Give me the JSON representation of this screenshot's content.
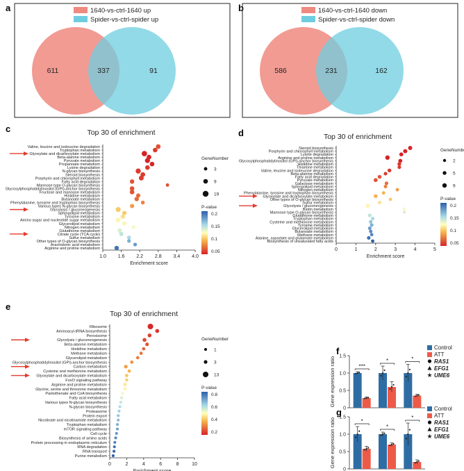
{
  "figure_labels": [
    "a",
    "b",
    "c",
    "d",
    "e",
    "f",
    "g"
  ],
  "chart_data": [
    {
      "panel": "a",
      "type": "venn",
      "legend": [
        "1640-vs-ctrl-1640 up",
        "Spider-vs-ctrl-spider up"
      ],
      "values": {
        "left_only": "611",
        "overlap": "337",
        "right_only": "91"
      },
      "colors": [
        "#ee8a80",
        "#6fcde0"
      ]
    },
    {
      "panel": "b",
      "type": "venn",
      "legend": [
        "1640-vs-ctrl-1640 down",
        "Spider-vs-ctrl-spider down"
      ],
      "values": {
        "left_only": "586",
        "overlap": "231",
        "right_only": "162"
      },
      "colors": [
        "#ee8a80",
        "#6fcde0"
      ]
    },
    {
      "panel": "c",
      "type": "scatter",
      "title": "Top 30 of enrichment",
      "xlabel": "Enrichment score",
      "xlim": [
        1.0,
        4.0
      ],
      "xticks": [
        "1.0",
        "1.6",
        "2.2",
        "2.8",
        "3.4",
        "4.0"
      ],
      "size_legend_title": "GeneNumber",
      "size_legend": [
        "3",
        "9",
        "19"
      ],
      "color_legend_title": "P-value",
      "color_legend": [
        "0.2",
        "0.15",
        "0.1",
        "0.05"
      ],
      "pmin": 0.03,
      "pmax": 0.22,
      "gmax": 19,
      "terms": [
        {
          "name": "Valine, leucine and isoleucine degradation",
          "score": 2.8,
          "p": 0.05,
          "genes": 10,
          "arrow": false
        },
        {
          "name": "Tryptophan metabolism",
          "score": 2.7,
          "p": 0.04,
          "genes": 9,
          "arrow": false
        },
        {
          "name": "Glyoxylate and dicarboxylate metabolism",
          "score": 2.35,
          "p": 0.03,
          "genes": 15,
          "arrow": true
        },
        {
          "name": "Beta-alanine metabolism",
          "score": 2.5,
          "p": 0.03,
          "genes": 10,
          "arrow": false
        },
        {
          "name": "Pyruvate metabolism",
          "score": 2.45,
          "p": 0.03,
          "genes": 12,
          "arrow": false
        },
        {
          "name": "Propanoate metabolism",
          "score": 2.6,
          "p": 0.03,
          "genes": 9,
          "arrow": false
        },
        {
          "name": "Lysine degradation",
          "score": 2.45,
          "p": 0.04,
          "genes": 9,
          "arrow": false
        },
        {
          "name": "N-glycan biosynthesis",
          "score": 2.15,
          "p": 0.04,
          "genes": 13,
          "arrow": false
        },
        {
          "name": "Steroid biosynthesis",
          "score": 2.3,
          "p": 0.04,
          "genes": 10,
          "arrow": false
        },
        {
          "name": "Porphyrin and chlorophyll metabolism",
          "score": 2.25,
          "p": 0.04,
          "genes": 11,
          "arrow": false
        },
        {
          "name": "Fatty acid degradation",
          "score": 1.95,
          "p": 0.05,
          "genes": 8,
          "arrow": false
        },
        {
          "name": "Mannose type O-glycan biosynthesis",
          "score": 3.1,
          "p": 0.05,
          "genes": 3,
          "arrow": false
        },
        {
          "name": "Glycosylphosphatidylinositol (GPI)-anchor biosynthesis",
          "score": 1.95,
          "p": 0.05,
          "genes": 9,
          "arrow": false
        },
        {
          "name": "Fructose and mannose metabolism",
          "score": 1.95,
          "p": 0.05,
          "genes": 9,
          "arrow": false
        },
        {
          "name": "Histidine metabolism",
          "score": 2.15,
          "p": 0.06,
          "genes": 7,
          "arrow": false
        },
        {
          "name": "Butanoate metabolism",
          "score": 2.1,
          "p": 0.06,
          "genes": 8,
          "arrow": false
        },
        {
          "name": "Phenylalanine, tyrosine and tryptophan biosynthesis",
          "score": 2.3,
          "p": 0.07,
          "genes": 5,
          "arrow": false
        },
        {
          "name": "Various types N-glycan biosynthesis",
          "score": 1.95,
          "p": 0.08,
          "genes": 7,
          "arrow": false
        },
        {
          "name": "Glycolysis / gluconeogenesis",
          "score": 1.5,
          "p": 0.1,
          "genes": 12,
          "arrow": true
        },
        {
          "name": "Sphingolipid metabolism",
          "score": 1.7,
          "p": 0.1,
          "genes": 7,
          "arrow": false
        },
        {
          "name": "Tyrosine metabolism",
          "score": 1.65,
          "p": 0.11,
          "genes": 8,
          "arrow": false
        },
        {
          "name": "Amino sugar and nucleotide sugar metabolism",
          "score": 1.5,
          "p": 0.12,
          "genes": 9,
          "arrow": false
        },
        {
          "name": "Glycerolipid metabolism",
          "score": 1.7,
          "p": 0.12,
          "genes": 6,
          "arrow": false
        },
        {
          "name": "Nitrogen metabolism",
          "score": 2.0,
          "p": 0.13,
          "genes": 4,
          "arrow": false
        },
        {
          "name": "Glutathione metabolism",
          "score": 1.55,
          "p": 0.14,
          "genes": 8,
          "arrow": false
        },
        {
          "name": "Citrate cycle (TCA cycle)",
          "score": 1.6,
          "p": 0.15,
          "genes": 7,
          "arrow": true
        },
        {
          "name": "Sulfur metabolism",
          "score": 1.85,
          "p": 0.16,
          "genes": 5,
          "arrow": false
        },
        {
          "name": "Other types of O-glycan biosynthesis",
          "score": 1.85,
          "p": 0.18,
          "genes": 4,
          "arrow": false
        },
        {
          "name": "Arachidonic acid metabolism",
          "score": 2.05,
          "p": 0.19,
          "genes": 4,
          "arrow": false
        },
        {
          "name": "Arginine and proline metabolism",
          "score": 1.45,
          "p": 0.21,
          "genes": 8,
          "arrow": false
        }
      ]
    },
    {
      "panel": "d",
      "type": "scatter",
      "title": "Top 30 of enrichment",
      "xlabel": "Enrichment score",
      "xlim": [
        0,
        5
      ],
      "xticks": [
        "0",
        "1",
        "2",
        "3",
        "4",
        "5"
      ],
      "size_legend_title": "GeneNumber",
      "size_legend": [
        "2",
        "5",
        "9"
      ],
      "color_legend_title": "P-value",
      "color_legend": [
        "0.2",
        "0.15",
        "0.1",
        "0.05"
      ],
      "pmin": 0.03,
      "pmax": 0.22,
      "gmax": 9,
      "terms": [
        {
          "name": "Steroid biosynthesis",
          "score": 3.75,
          "p": 0.03,
          "genes": 7,
          "arrow": false
        },
        {
          "name": "Porphyrin and chlorophyll metabolism",
          "score": 3.5,
          "p": 0.03,
          "genes": 7,
          "arrow": false
        },
        {
          "name": "Lysine degradation",
          "score": 3.3,
          "p": 0.03,
          "genes": 6,
          "arrow": false
        },
        {
          "name": "Arginine and proline metabolism",
          "score": 2.6,
          "p": 0.03,
          "genes": 9,
          "arrow": false
        },
        {
          "name": "Glycosylphosphatidylinositol (GPI)-anchor biosynthesis",
          "score": 3.25,
          "p": 0.03,
          "genes": 6,
          "arrow": false
        },
        {
          "name": "Histidine metabolism",
          "score": 3.2,
          "p": 0.04,
          "genes": 5,
          "arrow": false
        },
        {
          "name": "Thiamine metabolism",
          "score": 3.2,
          "p": 0.04,
          "genes": 4,
          "arrow": false
        },
        {
          "name": "Valine, leucine and isoleucine degradation",
          "score": 2.7,
          "p": 0.04,
          "genes": 5,
          "arrow": false
        },
        {
          "name": "Beta-alanine metabolism",
          "score": 2.5,
          "p": 0.04,
          "genes": 4,
          "arrow": false
        },
        {
          "name": "Fatty acid degradation",
          "score": 2.2,
          "p": 0.05,
          "genes": 5,
          "arrow": false
        },
        {
          "name": "Pyruvate metabolism",
          "score": 2.0,
          "p": 0.05,
          "genes": 6,
          "arrow": false
        },
        {
          "name": "Galactose metabolism",
          "score": 2.55,
          "p": 0.06,
          "genes": 4,
          "arrow": false
        },
        {
          "name": "Sphingolipid metabolism",
          "score": 2.5,
          "p": 0.07,
          "genes": 4,
          "arrow": false
        },
        {
          "name": "Nitrogen metabolism",
          "score": 3.1,
          "p": 0.08,
          "genes": 3,
          "arrow": false
        },
        {
          "name": "Phenylalanine, tyrosine and tryptophan biosynthesis",
          "score": 2.4,
          "p": 0.09,
          "genes": 3,
          "arrow": false
        },
        {
          "name": "Glyoxylate and dicarboxylate metabolism",
          "score": 2.0,
          "p": 0.09,
          "genes": 5,
          "arrow": true
        },
        {
          "name": "Other types of O-glycan biosynthesis",
          "score": 2.75,
          "p": 0.1,
          "genes": 3,
          "arrow": false
        },
        {
          "name": "Sulfur metabolism",
          "score": 2.2,
          "p": 0.11,
          "genes": 3,
          "arrow": false
        },
        {
          "name": "Glycolysis / gluconeogenesis",
          "score": 1.6,
          "p": 0.12,
          "genes": 6,
          "arrow": true
        },
        {
          "name": "Biotin metabolism",
          "score": 3.45,
          "p": 0.13,
          "genes": 2,
          "arrow": false
        },
        {
          "name": "Mannose type O-glycan biosynthesis",
          "score": 3.45,
          "p": 0.14,
          "genes": 2,
          "arrow": false
        },
        {
          "name": "Glutathione metabolism",
          "score": 1.7,
          "p": 0.15,
          "genes": 5,
          "arrow": false
        },
        {
          "name": "Tryptophan metabolism",
          "score": 1.85,
          "p": 0.16,
          "genes": 4,
          "arrow": false
        },
        {
          "name": "Cysteine and methionine metabolism",
          "score": 1.75,
          "p": 0.17,
          "genes": 4,
          "arrow": false
        },
        {
          "name": "Tyrosine metabolism",
          "score": 1.8,
          "p": 0.18,
          "genes": 4,
          "arrow": false
        },
        {
          "name": "Glycerolipid metabolism",
          "score": 1.7,
          "p": 0.19,
          "genes": 4,
          "arrow": false
        },
        {
          "name": "Butanoate metabolism",
          "score": 1.75,
          "p": 0.2,
          "genes": 3,
          "arrow": false
        },
        {
          "name": "Methane metabolism",
          "score": 1.8,
          "p": 0.2,
          "genes": 3,
          "arrow": false
        },
        {
          "name": "Alanine, aspartate and glutamate metabolism",
          "score": 1.65,
          "p": 0.21,
          "genes": 4,
          "arrow": false
        },
        {
          "name": "Biosynthesis of unsaturated fatty acids",
          "score": 1.85,
          "p": 0.22,
          "genes": 3,
          "arrow": false
        }
      ]
    },
    {
      "panel": "e",
      "type": "scatter",
      "title": "Top 30 of enrichment",
      "xlabel": "Enrichment score",
      "xlim": [
        0,
        10
      ],
      "xticks": [
        "0",
        "2",
        "4",
        "6",
        "8",
        "10"
      ],
      "size_legend_title": "GeneNumber",
      "size_legend": [
        "1",
        "3",
        "13"
      ],
      "color_legend_title": "P-value",
      "color_legend": [
        "0.8",
        "0.6",
        "0.4",
        "0.2"
      ],
      "pmin": 0.05,
      "pmax": 0.9,
      "gmax": 13,
      "terms": [
        {
          "name": "Ribosome",
          "score": 4.8,
          "p": 0.06,
          "genes": 13,
          "arrow": false
        },
        {
          "name": "Aminoacyl-tRNA biosynthesis",
          "score": 5.6,
          "p": 0.08,
          "genes": 4,
          "arrow": false
        },
        {
          "name": "Peroxisome",
          "score": 4.7,
          "p": 0.1,
          "genes": 4,
          "arrow": false
        },
        {
          "name": "Glycolysis / gluconeogenesis",
          "score": 4.1,
          "p": 0.12,
          "genes": 4,
          "arrow": true
        },
        {
          "name": "Beta-alanine metabolism",
          "score": 4.4,
          "p": 0.14,
          "genes": 3,
          "arrow": false
        },
        {
          "name": "Histidine metabolism",
          "score": 4.0,
          "p": 0.17,
          "genes": 2,
          "arrow": false
        },
        {
          "name": "Methane metabolism",
          "score": 3.7,
          "p": 0.2,
          "genes": 2,
          "arrow": false
        },
        {
          "name": "Glycerolipid metabolism",
          "score": 3.3,
          "p": 0.22,
          "genes": 2,
          "arrow": false
        },
        {
          "name": "Glycosylphosphatidylinositol (GPI)-anchor biosynthesis",
          "score": 2.6,
          "p": 0.25,
          "genes": 2,
          "arrow": false
        },
        {
          "name": "Carbon metabolism",
          "score": 1.9,
          "p": 0.28,
          "genes": 3,
          "arrow": true
        },
        {
          "name": "Cysteine and methionine metabolism",
          "score": 2.3,
          "p": 0.32,
          "genes": 2,
          "arrow": false
        },
        {
          "name": "Glyoxylate and dicarboxylate metabolism",
          "score": 2.0,
          "p": 0.35,
          "genes": 2,
          "arrow": true
        },
        {
          "name": "FoxO signaling pathway",
          "score": 2.0,
          "p": 0.38,
          "genes": 2,
          "arrow": false
        },
        {
          "name": "Arginine and proline metabolism",
          "score": 1.8,
          "p": 0.42,
          "genes": 2,
          "arrow": false
        },
        {
          "name": "Glycine, serine and threonine metabolism",
          "score": 1.8,
          "p": 0.45,
          "genes": 2,
          "arrow": false
        },
        {
          "name": "Pantothenate and CoA biosynthesis",
          "score": 1.5,
          "p": 0.5,
          "genes": 1,
          "arrow": false
        },
        {
          "name": "Fatty acid metabolism",
          "score": 1.4,
          "p": 0.55,
          "genes": 1,
          "arrow": false
        },
        {
          "name": "Various types N-glycan biosynthesis",
          "score": 1.3,
          "p": 0.58,
          "genes": 1,
          "arrow": false
        },
        {
          "name": "N-glycan biosynthesis",
          "score": 1.2,
          "p": 0.62,
          "genes": 1,
          "arrow": false
        },
        {
          "name": "Proteasome",
          "score": 1.1,
          "p": 0.65,
          "genes": 1,
          "arrow": false
        },
        {
          "name": "Protein export",
          "score": 1.0,
          "p": 0.68,
          "genes": 1,
          "arrow": false
        },
        {
          "name": "Nicotinate and nicotinamide metabolism",
          "score": 1.0,
          "p": 0.7,
          "genes": 1,
          "arrow": false
        },
        {
          "name": "Tryptophan metabolism",
          "score": 0.9,
          "p": 0.72,
          "genes": 1,
          "arrow": false
        },
        {
          "name": "mTOR signaling pathway",
          "score": 0.9,
          "p": 0.75,
          "genes": 1,
          "arrow": false
        },
        {
          "name": "Cell cycle",
          "score": 0.8,
          "p": 0.78,
          "genes": 1,
          "arrow": false
        },
        {
          "name": "Biosynthesis of amino acids",
          "score": 0.7,
          "p": 0.8,
          "genes": 1,
          "arrow": false
        },
        {
          "name": "Protein processing in endoplasmic reticulum",
          "score": 0.6,
          "p": 0.83,
          "genes": 1,
          "arrow": false
        },
        {
          "name": "RNA degradation",
          "score": 0.55,
          "p": 0.86,
          "genes": 1,
          "arrow": false
        },
        {
          "name": "RNA transport",
          "score": 0.5,
          "p": 0.88,
          "genes": 1,
          "arrow": false
        },
        {
          "name": "Purine metabolism",
          "score": 0.4,
          "p": 0.9,
          "genes": 1,
          "arrow": false
        }
      ]
    },
    {
      "panel": "f",
      "type": "bar",
      "ylabel": "Gene expression ratio",
      "ylim": [
        0,
        1.5
      ],
      "yticks": [
        "0",
        "0.5",
        "1.0",
        "1.5"
      ],
      "legend": [
        "Control",
        "ATT"
      ],
      "gene_legend": [
        "RAS1",
        "EFG1",
        "UME6"
      ],
      "gene_markers": [
        "circle",
        "triangle",
        "star"
      ],
      "series": [
        {
          "name": "Control",
          "values": [
            1.0,
            1.0,
            1.0
          ],
          "errors": [
            0.04,
            0.2,
            0.25
          ]
        },
        {
          "name": "ATT",
          "values": [
            0.28,
            0.6,
            0.35
          ],
          "errors": [
            0.03,
            0.15,
            0.04
          ]
        }
      ],
      "significance": [
        "***",
        "*",
        "*"
      ]
    },
    {
      "panel": "g",
      "type": "bar",
      "ylabel": "Gene expression ratio",
      "ylim": [
        0,
        1.5
      ],
      "yticks": [
        "0",
        "0.5",
        "1.0",
        "1.5"
      ],
      "legend": [
        "Control",
        "ATT"
      ],
      "gene_legend": [
        "RAS1",
        "EFG1",
        "UME6"
      ],
      "gene_markers": [
        "circle",
        "triangle",
        "star"
      ],
      "series": [
        {
          "name": "Control",
          "values": [
            1.0,
            1.0,
            1.0
          ],
          "errors": [
            0.22,
            0.06,
            0.32
          ]
        },
        {
          "name": "ATT",
          "values": [
            0.58,
            0.7,
            0.2
          ],
          "errors": [
            0.07,
            0.05,
            0.06
          ]
        }
      ],
      "significance": [
        "*",
        "*",
        "*"
      ]
    }
  ],
  "colors": {
    "control_bar": "#2e6da4",
    "att_bar": "#ee5a48",
    "arrow": "#e33b2f",
    "venn_left": "#ee8a80",
    "venn_right": "#6fcde0"
  }
}
